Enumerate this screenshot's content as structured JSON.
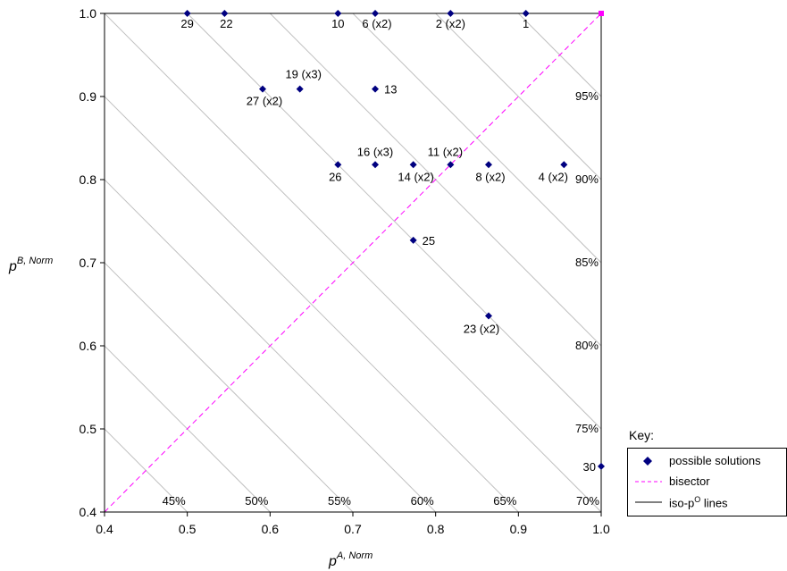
{
  "chart_data": {
    "type": "scatter",
    "title": "",
    "xlabel": {
      "base": "p",
      "sup": "A, Norm"
    },
    "ylabel": {
      "base": "p",
      "sup": "B, Norm"
    },
    "xlim": [
      0.4,
      1.0
    ],
    "ylim": [
      0.4,
      1.0
    ],
    "xticks": [
      "0.4",
      "0.5",
      "0.6",
      "0.7",
      "0.8",
      "0.9",
      "1.0"
    ],
    "yticks": [
      "0.4",
      "0.5",
      "0.6",
      "0.7",
      "0.8",
      "0.9",
      "1.0"
    ],
    "points": [
      {
        "x": 0.909,
        "y": 1.0,
        "label": "1"
      },
      {
        "x": 0.818,
        "y": 1.0,
        "label": "2 (x2)"
      },
      {
        "x": 0.727,
        "y": 1.0,
        "label": "6 (x2)"
      },
      {
        "x": 0.682,
        "y": 1.0,
        "label": "10"
      },
      {
        "x": 0.545,
        "y": 1.0,
        "label": "22"
      },
      {
        "x": 0.5,
        "y": 1.0,
        "label": "29"
      },
      {
        "x": 0.636,
        "y": 0.909,
        "label": "19 (x3)"
      },
      {
        "x": 0.591,
        "y": 0.909,
        "label": "27 (x2)"
      },
      {
        "x": 0.727,
        "y": 0.909,
        "label": "13"
      },
      {
        "x": 0.682,
        "y": 0.818,
        "label": "26"
      },
      {
        "x": 0.727,
        "y": 0.818,
        "label": "16 (x3)"
      },
      {
        "x": 0.773,
        "y": 0.818,
        "label": "14 (x2)"
      },
      {
        "x": 0.818,
        "y": 0.818,
        "label": "11 (x2)"
      },
      {
        "x": 0.864,
        "y": 0.818,
        "label": "8 (x2)"
      },
      {
        "x": 0.955,
        "y": 0.818,
        "label": "4 (x2)"
      },
      {
        "x": 0.773,
        "y": 0.727,
        "label": "25"
      },
      {
        "x": 0.864,
        "y": 0.636,
        "label": "23 (x2)"
      },
      {
        "x": 1.0,
        "y": 0.455,
        "label": "30"
      }
    ],
    "iso_lines": [
      {
        "label": "45%"
      },
      {
        "label": "50%"
      },
      {
        "label": "55%"
      },
      {
        "label": "60%"
      },
      {
        "label": "65%"
      },
      {
        "label": "70%"
      },
      {
        "label": "75%"
      },
      {
        "label": "80%"
      },
      {
        "label": "85%"
      },
      {
        "label": "90%"
      },
      {
        "label": "95%"
      }
    ],
    "colors": {
      "points": "#000080",
      "bisector": "#ff00ff",
      "iso": "#c0c0c0"
    },
    "legend": {
      "title": "Key:",
      "placement": "bottom-right",
      "entries": [
        {
          "kind": "diamond",
          "text": "possible solutions"
        },
        {
          "kind": "dashed",
          "text": "bisector"
        },
        {
          "kind": "solid",
          "text": "iso-p",
          "sup": "O",
          "suffix": " lines"
        }
      ]
    }
  }
}
